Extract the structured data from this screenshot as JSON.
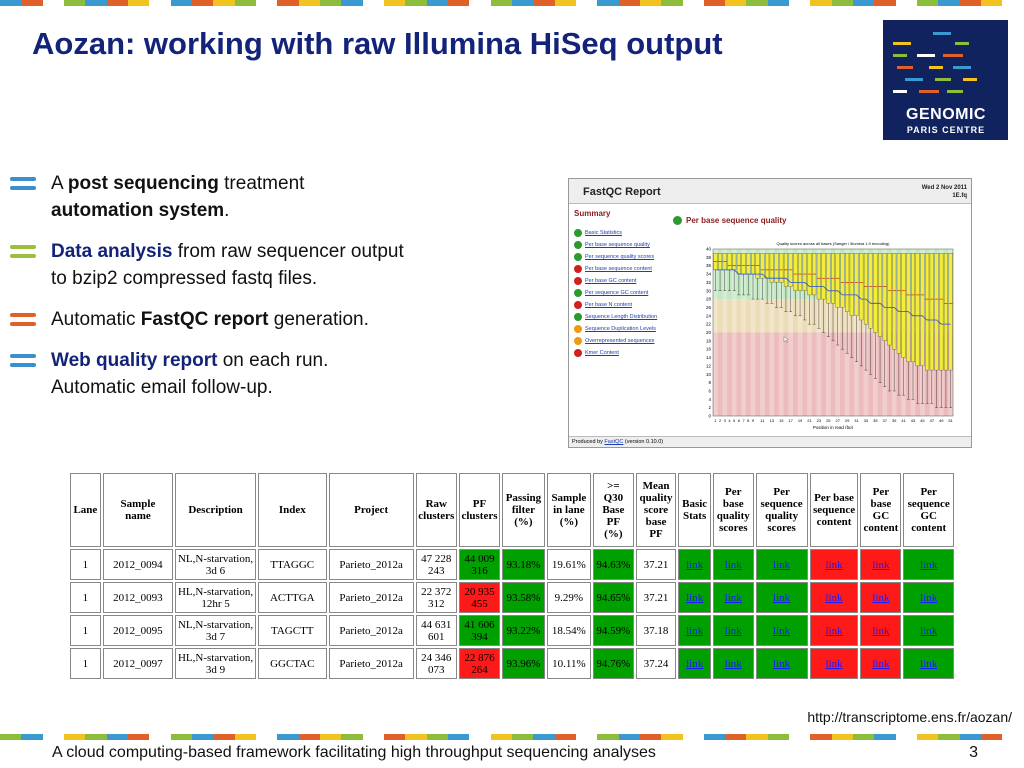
{
  "title": "Aozan: working with raw Illumina HiSeq output",
  "stripe_colors": [
    "#3a9ad0",
    "#8cbe3c",
    "#f2c31e",
    "#e0602a",
    "#3a9ad0",
    "#8cbe3c",
    "#f2c31e",
    "#e0602a"
  ],
  "logo": {
    "line1": "GENOMIC",
    "line2": "PARIS CENTRE"
  },
  "bullets": [
    {
      "color": "#3a8fcc",
      "parts": [
        {
          "t": "A ",
          "b": false
        },
        {
          "t": "post sequencing",
          "b": true
        },
        {
          "t": " treatment",
          "b": false
        },
        {
          "t": "automation system",
          "b": true,
          "br": true
        },
        {
          "t": ".",
          "b": false
        }
      ]
    },
    {
      "color": "#9bbe3c",
      "parts": [
        {
          "t": "Data analysis",
          "b": true,
          "blue": true
        },
        {
          "t": " from raw sequencer output",
          "b": false
        },
        {
          "t": "to bzip2 compressed fastq files.",
          "b": false,
          "br": true
        }
      ]
    },
    {
      "color": "#e0602a",
      "parts": [
        {
          "t": "Automatic ",
          "b": false
        },
        {
          "t": "FastQC report",
          "b": true
        },
        {
          "t": " generation.",
          "b": false
        }
      ]
    },
    {
      "color": "#3a8fcc",
      "parts": [
        {
          "t": "Web quality report",
          "b": true,
          "blue": true
        },
        {
          "t": " on each run.",
          "b": false
        },
        {
          "t": "Automatic email follow-up.",
          "b": false,
          "br": true
        }
      ]
    }
  ],
  "fastqc": {
    "title": "FastQC Report",
    "date_line1": "Wed 2 Nov 2011",
    "date_line2": "1E.fq",
    "summary_label": "Summary",
    "items": [
      {
        "label": "Basic Statistics",
        "status": "pass"
      },
      {
        "label": "Per base sequence quality",
        "status": "pass"
      },
      {
        "label": "Per sequence quality scores",
        "status": "pass"
      },
      {
        "label": "Per base sequence content",
        "status": "fail"
      },
      {
        "label": "Per base GC content",
        "status": "fail"
      },
      {
        "label": "Per sequence GC content",
        "status": "pass"
      },
      {
        "label": "Per base N content",
        "status": "fail"
      },
      {
        "label": "Sequence Length Distribution",
        "status": "pass"
      },
      {
        "label": "Sequence Duplication Levels",
        "status": "warn"
      },
      {
        "label": "Overrepresented sequences",
        "status": "warn"
      },
      {
        "label": "Kmer Content",
        "status": "fail"
      }
    ],
    "status_colors": {
      "pass": "#2c9a2c",
      "fail": "#d02020",
      "warn": "#f09a10"
    },
    "section_title": "Per base sequence quality",
    "plot_title": "Quality scores across all bases (Sanger / Illumina 1.9 encoding)",
    "plot_xlabel": "Position in read (bp)",
    "footer_prefix": "Produced by ",
    "footer_link": "FastQC",
    "footer_suffix": " (version 0.10.0)"
  },
  "chart_data": {
    "type": "bar",
    "title": "Quality scores across all bases (Sanger / Illumina 1.9 encoding)",
    "xlabel": "Position in read (bp)",
    "ylim": [
      0,
      40
    ],
    "y_ticks": [
      0,
      2,
      4,
      6,
      8,
      10,
      12,
      14,
      16,
      18,
      20,
      22,
      24,
      26,
      28,
      30,
      32,
      34,
      36,
      38,
      40
    ],
    "x_ticks": [
      "1",
      "2",
      "3",
      "4",
      "5",
      "6",
      "7",
      "8",
      "9",
      "11",
      "13",
      "15",
      "17",
      "19",
      "21",
      "23",
      "25",
      "27",
      "29",
      "31",
      "33",
      "35",
      "37",
      "39",
      "41",
      "43",
      "45",
      "47",
      "49",
      "51"
    ],
    "x": [
      1,
      2,
      3,
      4,
      5,
      6,
      7,
      8,
      9,
      10,
      11,
      12,
      13,
      14,
      15,
      16,
      17,
      18,
      19,
      20,
      21,
      22,
      23,
      24,
      25,
      26,
      27,
      28,
      29,
      30,
      31,
      32,
      33,
      34,
      35,
      36,
      37,
      38,
      39,
      40,
      41,
      42,
      43,
      44,
      45,
      46,
      47,
      48,
      49,
      50,
      51
    ],
    "upper": [
      39,
      39,
      39,
      39,
      39,
      39,
      39,
      39,
      39,
      39,
      39,
      39,
      39,
      39,
      39,
      39,
      39,
      39,
      39,
      39,
      39,
      39,
      39,
      39,
      39,
      39,
      39,
      39,
      39,
      39,
      39,
      39,
      39,
      39,
      39,
      39,
      39,
      39,
      39,
      39,
      39,
      39,
      39,
      39,
      39,
      39,
      39,
      39,
      39,
      39,
      39
    ],
    "q3": [
      39,
      39,
      39,
      39,
      39,
      39,
      39,
      39,
      39,
      39,
      39,
      39,
      39,
      39,
      39,
      39,
      39,
      39,
      39,
      39,
      39,
      39,
      39,
      39,
      39,
      39,
      39,
      39,
      39,
      39,
      39,
      39,
      39,
      39,
      39,
      39,
      39,
      39,
      39,
      39,
      39,
      39,
      39,
      39,
      39,
      39,
      39,
      39,
      39,
      39,
      39
    ],
    "median": [
      37,
      37,
      37,
      36,
      36,
      36,
      36,
      36,
      36,
      36,
      35,
      35,
      35,
      35,
      35,
      35,
      35,
      34,
      34,
      34,
      34,
      34,
      33,
      33,
      33,
      33,
      33,
      32,
      32,
      32,
      32,
      32,
      31,
      31,
      31,
      31,
      31,
      30,
      30,
      30,
      30,
      29,
      29,
      29,
      29,
      28,
      28,
      28,
      28,
      27,
      27
    ],
    "mean": [
      35,
      35,
      35,
      35,
      35,
      34,
      34,
      34,
      34,
      34,
      34,
      33,
      33,
      33,
      33,
      33,
      32,
      32,
      32,
      32,
      31,
      31,
      31,
      31,
      30,
      30,
      30,
      29,
      29,
      29,
      29,
      28,
      28,
      27,
      27,
      27,
      26,
      26,
      26,
      25,
      25,
      25,
      24,
      24,
      24,
      23,
      23,
      23,
      22,
      22,
      22
    ],
    "q1": [
      35,
      35,
      35,
      35,
      35,
      34,
      34,
      34,
      34,
      33,
      33,
      33,
      32,
      32,
      32,
      31,
      31,
      30,
      30,
      30,
      29,
      29,
      28,
      28,
      27,
      27,
      26,
      26,
      25,
      24,
      24,
      23,
      22,
      21,
      20,
      19,
      18,
      17,
      16,
      15,
      14,
      13,
      13,
      12,
      12,
      11,
      11,
      11,
      11,
      11,
      11
    ],
    "lower": [
      30,
      30,
      30,
      30,
      30,
      29,
      29,
      29,
      28,
      28,
      28,
      27,
      27,
      26,
      26,
      25,
      25,
      24,
      24,
      23,
      22,
      22,
      21,
      20,
      19,
      18,
      17,
      16,
      15,
      14,
      13,
      12,
      11,
      10,
      9,
      8,
      7,
      6,
      6,
      5,
      5,
      4,
      4,
      3,
      3,
      3,
      3,
      2,
      2,
      2,
      2
    ],
    "zone_colors": {
      "good": "#c3e7c3",
      "ok": "#ecdcb8",
      "bad": "#ecbcbc"
    },
    "box_color": "#f2ec3c",
    "mean_color": "#2a4dd8"
  },
  "table": {
    "headers": [
      "Lane",
      "Sample name",
      "Description",
      "Index",
      "Project",
      "Raw clusters",
      "PF clusters",
      "Passing filter (%)",
      "Sample in lane (%)",
      ">= Q30 Base PF (%)",
      "Mean quality score base PF",
      "Basic Stats",
      "Per base quality scores",
      "Per sequence quality scores",
      "Per base sequence content",
      "Per base GC content",
      "Per sequence GC content"
    ],
    "header_lines": [
      [
        "Lane"
      ],
      [
        "Sample",
        "name"
      ],
      [
        "Description"
      ],
      [
        "Index"
      ],
      [
        "Project"
      ],
      [
        "Raw",
        "clusters"
      ],
      [
        "PF",
        "clusters"
      ],
      [
        "Passing",
        "filter",
        "(%)"
      ],
      [
        "Sample",
        "in lane",
        "(%)"
      ],
      [
        ">=",
        "Q30",
        "Base",
        "PF",
        "(%)"
      ],
      [
        "Mean",
        "quality",
        "score",
        "base",
        "PF"
      ],
      [
        "Basic",
        "Stats"
      ],
      [
        "Per",
        "base",
        "quality",
        "scores"
      ],
      [
        "Per",
        "sequence",
        "quality",
        "scores"
      ],
      [
        "Per base",
        "sequence",
        "content"
      ],
      [
        "Per",
        "base",
        "GC",
        "content"
      ],
      [
        "Per",
        "sequence",
        "GC",
        "content"
      ]
    ],
    "col_widths": [
      30,
      73,
      85,
      72,
      88,
      40,
      40,
      42,
      44,
      40,
      40,
      32,
      40,
      52,
      48,
      40,
      50
    ],
    "link_label": "link",
    "rows": [
      {
        "lane": "1",
        "sample": "2012_0094",
        "desc1": "NL,N-starvation,",
        "desc2": "3d 6",
        "index": "TTAGGC",
        "project": "Parieto_2012a",
        "raw1": "47 228",
        "raw2": "243",
        "pf1": "44 009",
        "pf2": "316",
        "pf_status": "g",
        "passing": "93.18%",
        "in_lane": "19.61%",
        "q30": "94.63%",
        "mean_q": "37.21"
      },
      {
        "lane": "1",
        "sample": "2012_0093",
        "desc1": "HL,N-starvation,",
        "desc2": "12hr 5",
        "index": "ACTTGA",
        "project": "Parieto_2012a",
        "raw1": "22 372",
        "raw2": "312",
        "pf1": "20 935",
        "pf2": "455",
        "pf_status": "r",
        "passing": "93.58%",
        "in_lane": "9.29%",
        "q30": "94.65%",
        "mean_q": "37.21"
      },
      {
        "lane": "1",
        "sample": "2012_0095",
        "desc1": "NL,N-starvation,",
        "desc2": "3d 7",
        "index": "TAGCTT",
        "project": "Parieto_2012a",
        "raw1": "44 631",
        "raw2": "601",
        "pf1": "41 606",
        "pf2": "394",
        "pf_status": "g",
        "passing": "93.22%",
        "in_lane": "18.54%",
        "q30": "94.59%",
        "mean_q": "37.18"
      },
      {
        "lane": "1",
        "sample": "2012_0097",
        "desc1": "HL,N-starvation,",
        "desc2": "3d 9",
        "index": "GGCTAC",
        "project": "Parieto_2012a",
        "raw1": "24 346",
        "raw2": "073",
        "pf1": "22 876",
        "pf2": "264",
        "pf_status": "r",
        "passing": "93.96%",
        "in_lane": "10.11%",
        "q30": "94.76%",
        "mean_q": "37.24"
      }
    ],
    "link_status": [
      "g",
      "g",
      "g",
      "r",
      "r",
      "g"
    ]
  },
  "url": "http://transcriptome.ens.fr/aozan/",
  "footer": "A cloud computing-based framework facilitating high throughput sequencing analyses",
  "page_number": "3"
}
